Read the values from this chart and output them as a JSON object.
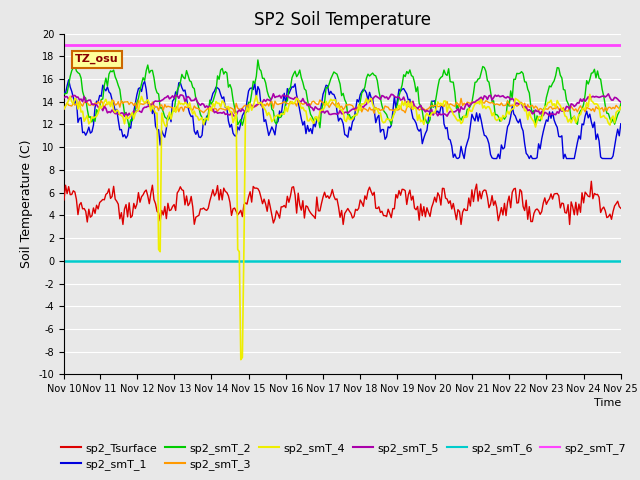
{
  "title": "SP2 Soil Temperature",
  "ylabel": "Soil Temperature (C)",
  "xlabel": "Time",
  "tz_label": "TZ_osu",
  "ylim": [
    -10,
    20
  ],
  "x_tick_labels": [
    "Nov 10",
    "Nov 11",
    "Nov 12",
    "Nov 13",
    "Nov 14",
    "Nov 15",
    "Nov 16",
    "Nov 17",
    "Nov 18",
    "Nov 19",
    "Nov 20",
    "Nov 21",
    "Nov 22",
    "Nov 23",
    "Nov 24",
    "Nov 25"
  ],
  "colors": {
    "sp2_Tsurface": "#dd0000",
    "sp2_smT_1": "#0000dd",
    "sp2_smT_2": "#00cc00",
    "sp2_smT_3": "#ff9900",
    "sp2_smT_4": "#eeee00",
    "sp2_smT_5": "#aa00aa",
    "sp2_smT_6": "#00cccc",
    "sp2_smT_7": "#ff44ff"
  },
  "plot_bg": "#e8e8e8",
  "fig_bg": "#e8e8e8",
  "title_fontsize": 12,
  "tick_fontsize": 7,
  "ylabel_fontsize": 9,
  "legend_fontsize": 8
}
